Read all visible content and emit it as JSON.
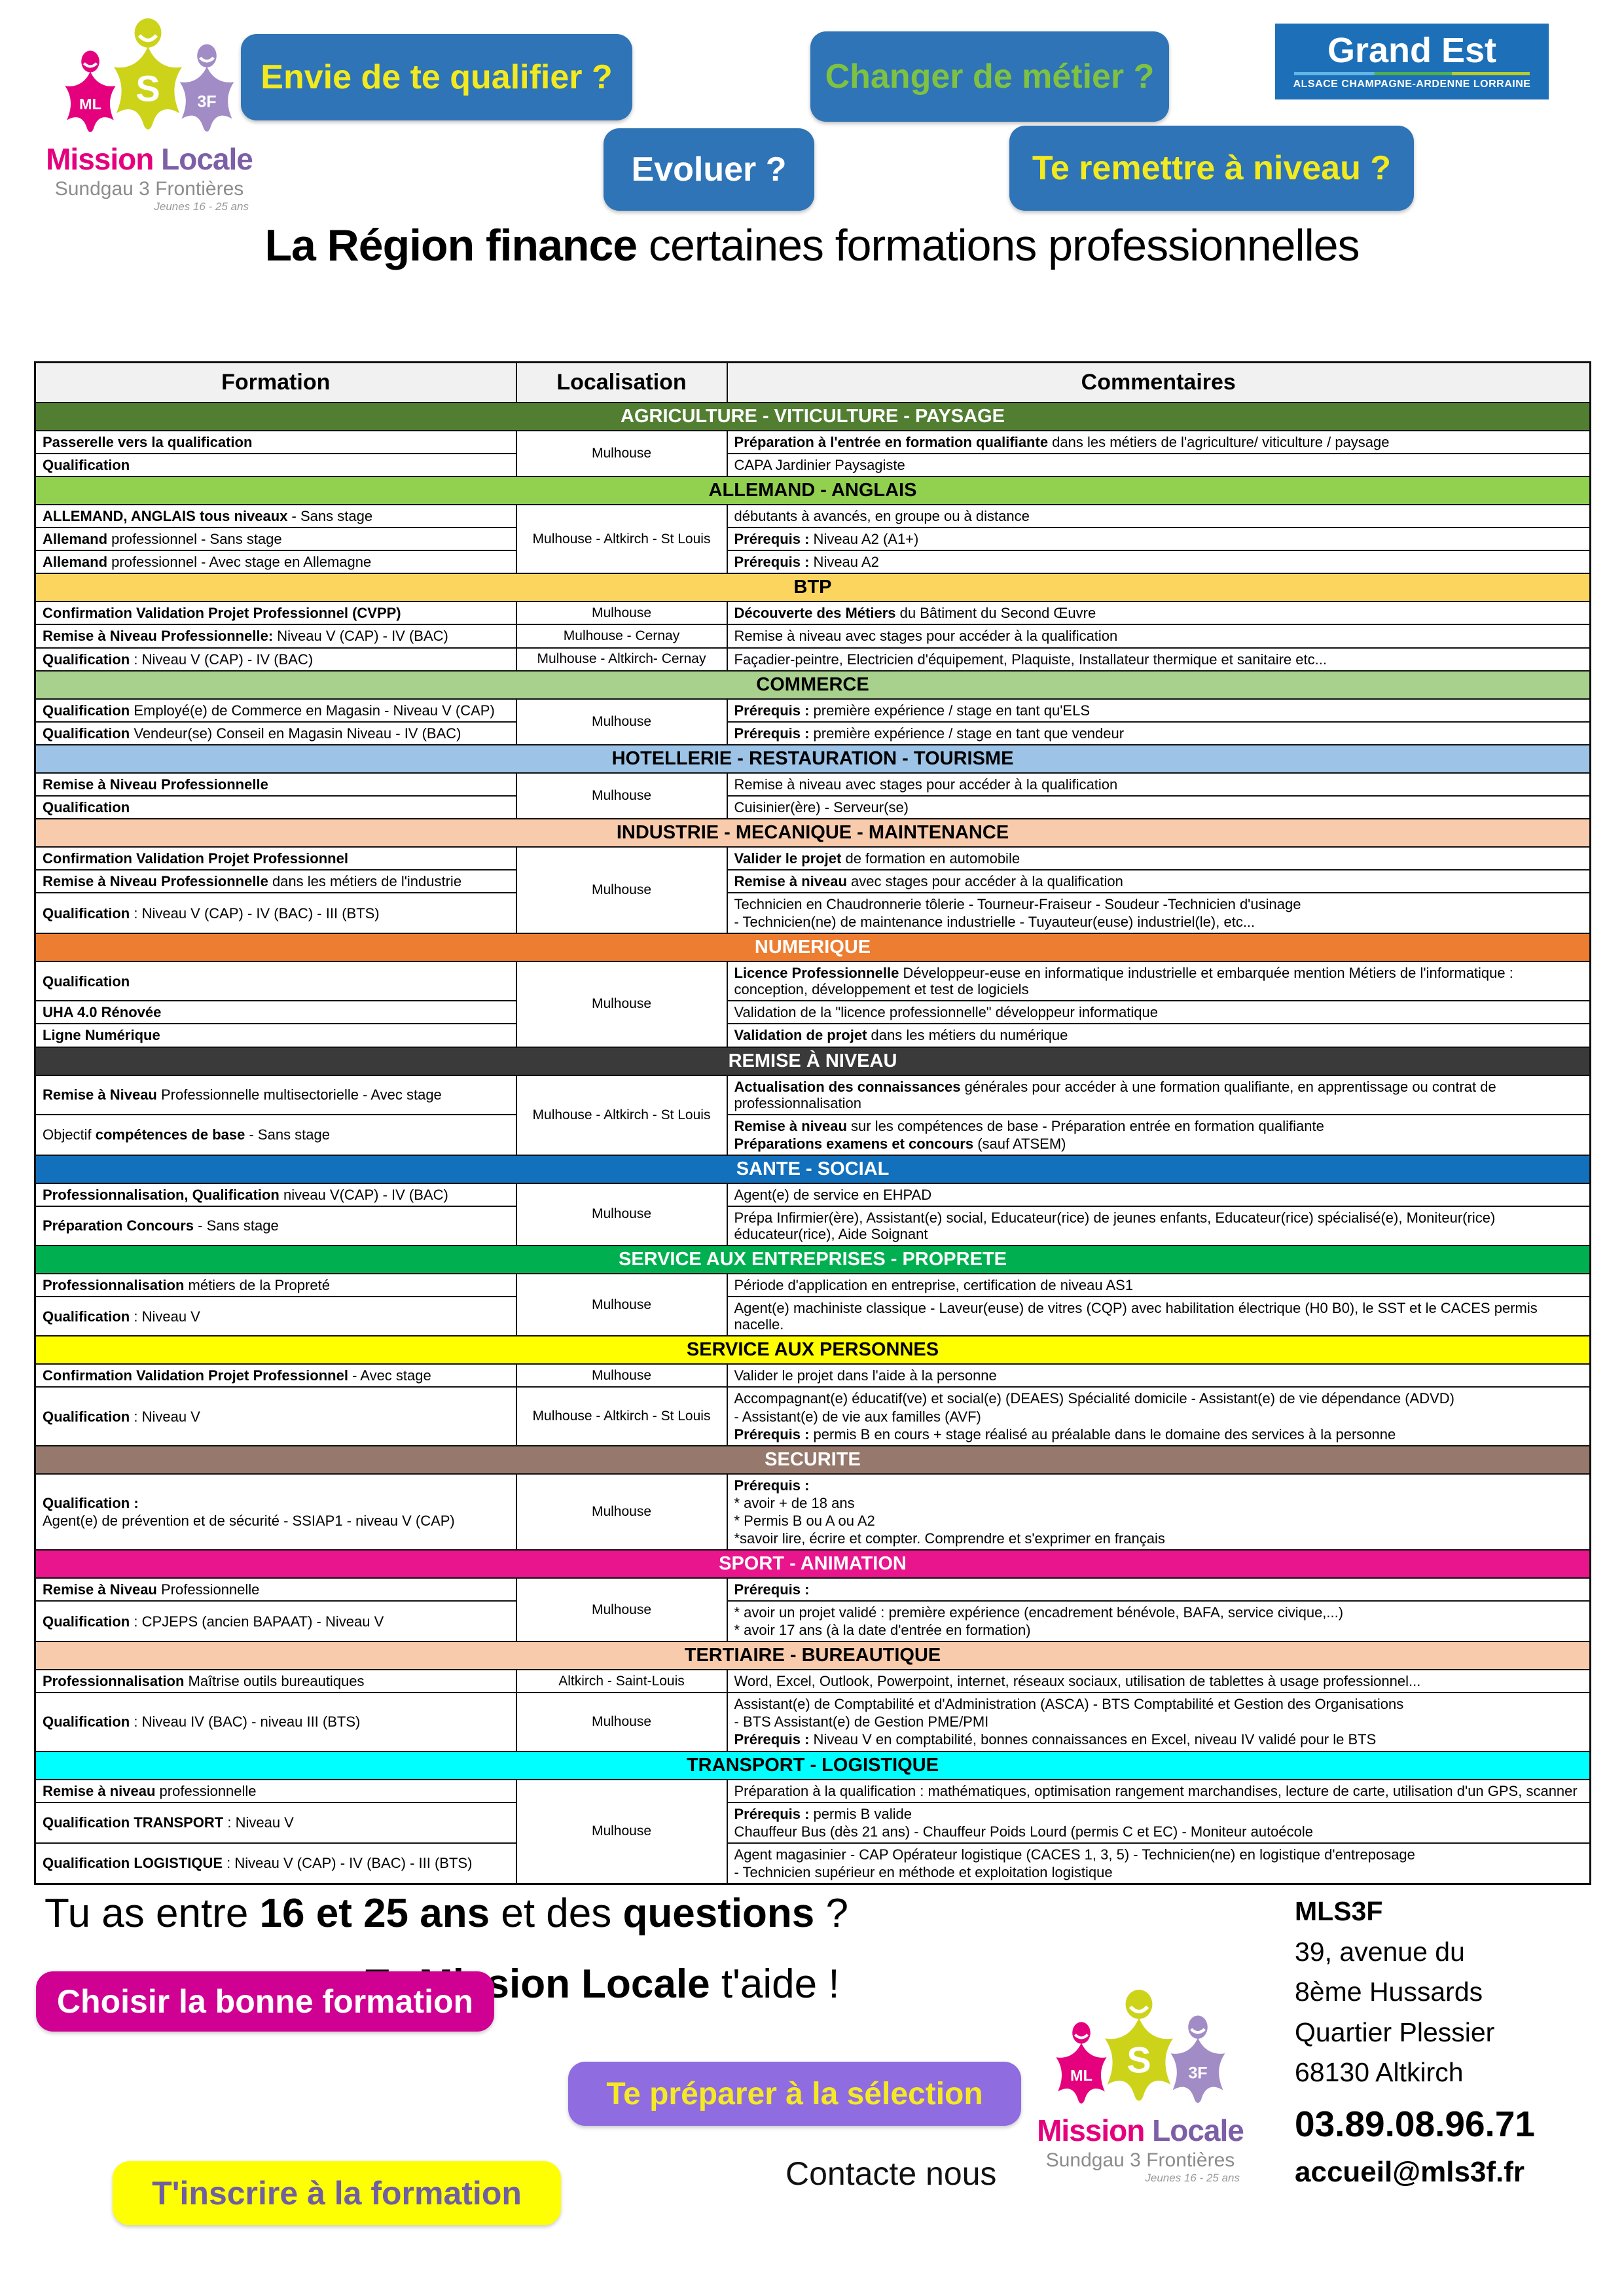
{
  "colors": {
    "button_blue": "#2e74b6",
    "yellow_text": "#f2ea1f",
    "green_text": "#7fc241",
    "grand_est_blue": "#1d70b8",
    "magenta": "#cf0092",
    "purple": "#8f6ce0",
    "yellow": "#ffff04",
    "logo_pink": "#e5007d",
    "logo_chartreuse": "#cdd319",
    "logo_purple": "#a18cc6"
  },
  "logo": {
    "badges": [
      {
        "letter": "ML",
        "color": "#e5007d"
      },
      {
        "letter": "S",
        "color": "#cdd319"
      },
      {
        "letter": "3F",
        "color": "#a18cc6"
      }
    ],
    "title_1": "Mission",
    "title_2": "Locale",
    "subtitle": "Sundgau 3  Frontières",
    "tagline": "Jeunes 16 - 25 ans"
  },
  "header": {
    "buttons": [
      {
        "label": "Envie de te qualifier ?"
      },
      {
        "label": "Changer de métier ?"
      },
      {
        "label": "Evoluer ?"
      },
      {
        "label": "Te remettre à niveau ?"
      }
    ],
    "grand_est": {
      "title": "Grand Est",
      "subtitle": "ALSACE CHAMPAGNE-ARDENNE LORRAINE"
    }
  },
  "title": {
    "bold": "La Région finance",
    "rest": " certaines formations professionnelles"
  },
  "table": {
    "columns": [
      "Formation",
      "Localisation",
      "Commentaires"
    ],
    "sections": [
      {
        "title": "AGRICULTURE  - VITICULTURE  - PAYSAGE",
        "bg": "#527e32",
        "fg": "#ffffff",
        "rows": [
          {
            "formation": [
              "**Passerelle vers la qualification**"
            ],
            "loc": "Mulhouse",
            "locSpan": 2,
            "comment": [
              "**Préparation à l'entrée en formation qualifiante** dans les métiers de l'agriculture/ viticulture / paysage"
            ]
          },
          {
            "formation": [
              "**Qualification**"
            ],
            "comment": [
              "CAPA Jardinier Paysagiste"
            ]
          }
        ]
      },
      {
        "title": "ALLEMAND - ANGLAIS",
        "bg": "#92d050",
        "fg": "#000000",
        "rows": [
          {
            "formation": [
              "**ALLEMAND, ANGLAIS tous niveaux** - Sans stage"
            ],
            "loc": "Mulhouse - Altkirch - St Louis",
            "locSpan": 3,
            "comment": [
              "débutants à avancés, en groupe ou à distance"
            ]
          },
          {
            "formation": [
              "**Allemand** professionnel - Sans stage"
            ],
            "comment": [
              "**Prérequis :** Niveau A2 (A1+)"
            ]
          },
          {
            "formation": [
              "**Allemand** professionnel - Avec stage en Allemagne"
            ],
            "comment": [
              "**Prérequis :** Niveau A2"
            ]
          }
        ]
      },
      {
        "title": "BTP",
        "bg": "#fcd55f",
        "fg": "#000000",
        "rows": [
          {
            "formation": [
              "**Confirmation Validation Projet Professionnel (CVPP)**"
            ],
            "loc": "Mulhouse",
            "comment": [
              "**Découverte des Métiers** du Bâtiment du Second Œuvre"
            ]
          },
          {
            "formation": [
              "**Remise à Niveau Professionnelle:** Niveau  V (CAP) - IV (BAC)"
            ],
            "loc": "Mulhouse - Cernay",
            "comment": [
              "Remise à niveau avec stages pour accéder à la qualification"
            ]
          },
          {
            "formation": [
              "**Qualification** : Niveau  V (CAP) - IV (BAC)"
            ],
            "loc": "Mulhouse - Altkirch- Cernay",
            "comment": [
              "Façadier-peintre, Electricien d'équipement, Plaquiste, Installateur thermique et sanitaire etc..."
            ]
          }
        ]
      },
      {
        "title": "COMMERCE",
        "bg": "#a9d18e",
        "fg": "#000000",
        "rows": [
          {
            "formation": [
              "**Qualification** Employé(e) de Commerce en Magasin - Niveau V (CAP)"
            ],
            "loc": "Mulhouse",
            "locSpan": 2,
            "comment": [
              "**Prérequis :** première expérience / stage en tant qu'ELS"
            ]
          },
          {
            "formation": [
              "**Qualification** Vendeur(se) Conseil en Magasin Niveau - IV (BAC)"
            ],
            "comment": [
              "**Prérequis :** première expérience / stage en tant que vendeur"
            ]
          }
        ]
      },
      {
        "title": "HOTELLERIE - RESTAURATION - TOURISME",
        "bg": "#9dc3e6",
        "fg": "#000000",
        "rows": [
          {
            "formation": [
              "**Remise à Niveau Professionnelle**"
            ],
            "loc": "Mulhouse",
            "locSpan": 2,
            "comment": [
              "Remise à niveau avec stages pour accéder à la qualification"
            ]
          },
          {
            "formation": [
              "**Qualification**"
            ],
            "comment": [
              "Cuisinier(ère)  - Serveur(se)"
            ]
          }
        ]
      },
      {
        "title": "INDUSTRIE - MECANIQUE - MAINTENANCE",
        "bg": "#f8cbad",
        "fg": "#000000",
        "rows": [
          {
            "formation": [
              "**Confirmation Validation Projet Professionnel**"
            ],
            "loc": "Mulhouse",
            "locSpan": 3,
            "comment": [
              "**Valider le projet** de formation en automobile"
            ]
          },
          {
            "formation": [
              "**Remise à Niveau Professionnelle** dans les métiers de l'industrie"
            ],
            "comment": [
              "**Remise à niveau** avec stages pour accéder à la qualification"
            ]
          },
          {
            "formation": [
              "**Qualification** : Niveau  V (CAP) - IV (BAC) - III (BTS)"
            ],
            "comment": [
              "Technicien en Chaudronnerie tôlerie -  Tourneur-Fraiseur - Soudeur -Technicien d'usinage",
              "- Technicien(ne) de maintenance industrielle - Tuyauteur(euse) industriel(le), etc..."
            ]
          }
        ]
      },
      {
        "title": "NUMERIQUE",
        "bg": "#ed7d31",
        "fg": "#ffffff",
        "rows": [
          {
            "formation": [
              "**Qualification**"
            ],
            "loc": "Mulhouse",
            "locSpan": 3,
            "comment": [
              "**Licence Professionnelle** Développeur-euse en informatique industrielle et embarquée mention Métiers de l'informatique : conception, développement et test de logiciels"
            ]
          },
          {
            "formation": [
              "**UHA 4.0 Rénovée**"
            ],
            "comment": [
              "Validation de la \"licence professionnelle\" développeur informatique"
            ]
          },
          {
            "formation": [
              "**Ligne Numérique**"
            ],
            "comment": [
              "**Validation de projet** dans les métiers du numérique"
            ]
          }
        ]
      },
      {
        "title": "REMISE À NIVEAU",
        "bg": "#3a3a3a",
        "fg": "#ffffff",
        "rows": [
          {
            "formation": [
              "**Remise à Niveau** Professionnelle multisectorielle - Avec stage"
            ],
            "loc": "Mulhouse - Altkirch - St Louis",
            "locSpan": 2,
            "comment": [
              "**Actualisation des connaissances** générales pour accéder à une formation qualifiante, en apprentissage ou contrat de professionnalisation"
            ]
          },
          {
            "formation": [
              "Objectif **compétences de base** - Sans stage"
            ],
            "comment": [
              "**Remise à niveau** sur les compétences de base - Préparation entrée en formation qualifiante",
              "**Préparations examens et concours** (sauf ATSEM)"
            ]
          }
        ]
      },
      {
        "title": "SANTE - SOCIAL",
        "bg": "#1270bd",
        "fg": "#ffffff",
        "rows": [
          {
            "formation": [
              "**Professionnalisation, Qualification** niveau V(CAP) - IV (BAC)"
            ],
            "loc": "Mulhouse",
            "locSpan": 2,
            "comment": [
              "Agent(e) de service en EHPAD"
            ]
          },
          {
            "formation": [
              "**Préparation Concours** - Sans stage"
            ],
            "comment": [
              "Prépa Infirmier(ère), Assistant(e) social, Educateur(rice) de jeunes enfants, Educateur(rice) spécialisé(e), Moniteur(rice) éducateur(rice), Aide Soignant"
            ]
          }
        ]
      },
      {
        "title": "SERVICE AUX ENTREPRISES - PROPRETE",
        "bg": "#00b050",
        "fg": "#ffffff",
        "rows": [
          {
            "formation": [
              "**Professionnalisation** métiers de la Propreté"
            ],
            "loc": "Mulhouse",
            "locSpan": 2,
            "comment": [
              "Période d'application en entreprise, certification de niveau AS1"
            ]
          },
          {
            "formation": [
              "**Qualification** : Niveau V"
            ],
            "comment": [
              "Agent(e) machiniste classique -  Laveur(euse) de vitres (CQP) avec habilitation électrique (H0 B0), le SST et le CACES permis nacelle."
            ]
          }
        ]
      },
      {
        "title": "SERVICE AUX PERSONNES",
        "bg": "#ffff00",
        "fg": "#000000",
        "rows": [
          {
            "formation": [
              "**Confirmation Validation Projet Professionnel** - Avec stage"
            ],
            "loc": "Mulhouse",
            "comment": [
              "Valider le projet dans l'aide à la personne"
            ]
          },
          {
            "formation": [
              "**Qualification** : Niveau V"
            ],
            "loc": "Mulhouse - Altkirch - St Louis",
            "comment": [
              "Accompagnant(e) éducatif(ve) et social(e) (DEAES) Spécialité domicile - Assistant(e) de vie dépendance (ADVD)",
              "- Assistant(e) de vie aux familles (AVF)",
              "**Prérequis :** permis B en cours +  stage réalisé au préalable dans le domaine des services à la personne"
            ]
          }
        ]
      },
      {
        "title": "SECURITE",
        "bg": "#96786c",
        "fg": "#ffffff",
        "rows": [
          {
            "formation": [
              "**Qualification :**",
              " Agent(e) de prévention et de sécurité - SSIAP1 - niveau V (CAP)"
            ],
            "loc": "Mulhouse",
            "comment": [
              "**Prérequis :**",
              "* avoir + de 18 ans",
              "* Permis B ou A ou A2",
              "*savoir lire, écrire et compter. Comprendre et s'exprimer en français"
            ]
          }
        ]
      },
      {
        "title": "SPORT - ANIMATION",
        "bg": "#e9158d",
        "fg": "#ffffff",
        "rows": [
          {
            "formation": [
              "**Remise à Niveau** Professionnelle"
            ],
            "loc": "Mulhouse",
            "locSpan": 2,
            "comment": [
              "**Prérequis :**"
            ]
          },
          {
            "formation": [
              "**Qualification** : CPJEPS (ancien BAPAAT)  - Niveau V"
            ],
            "comment": [
              "* avoir un projet validé : première expérience (encadrement bénévole, BAFA, service civique,...)",
              "* avoir 17 ans (à la date d'entrée en formation)"
            ]
          }
        ]
      },
      {
        "title": "TERTIAIRE -  BUREAUTIQUE",
        "bg": "#f8cbad",
        "fg": "#000000",
        "rows": [
          {
            "formation": [
              "**Professionnalisation** Maîtrise outils bureautiques"
            ],
            "loc": "Altkirch - Saint-Louis",
            "comment": [
              "Word, Excel, Outlook, Powerpoint, internet, réseaux sociaux, utilisation de tablettes à usage professionnel..."
            ]
          },
          {
            "formation": [
              "**Qualification** : Niveau IV (BAC) - niveau III (BTS)"
            ],
            "loc": "Mulhouse",
            "comment": [
              "Assistant(e) de Comptabilité et d'Administration (ASCA) - BTS Comptabilité et Gestion des Organisations",
              "- BTS Assistant(e) de Gestion PME/PMI",
              "**Prérequis :** Niveau V en comptabilité, bonnes connaissances en Excel, niveau IV validé pour le BTS"
            ]
          }
        ]
      },
      {
        "title": "TRANSPORT - LOGISTIQUE",
        "bg": "#00ffff",
        "fg": "#000000",
        "rows": [
          {
            "formation": [
              "**Remise à niveau** professionnelle"
            ],
            "loc": "Mulhouse",
            "locSpan": 3,
            "comment": [
              "Préparation à la qualification : mathématiques, optimisation rangement marchandises, lecture de carte, utilisation d'un GPS, scanner"
            ]
          },
          {
            "formation": [
              "**Qualification TRANSPORT** : Niveau V"
            ],
            "comment": [
              "**Prérequis :** permis B valide",
              "Chauffeur Bus (dès 21 ans) - Chauffeur Poids Lourd (permis C et EC)  - Moniteur autoécole"
            ]
          },
          {
            "formation": [
              "**Qualification LOGISTIQUE** :  Niveau V (CAP) - IV (BAC) - III (BTS)"
            ],
            "comment": [
              "Agent magasinier -  CAP Opérateur logistique (CACES 1, 3, 5) - Technicien(ne) en logistique d'entreposage",
              "- Technicien supérieur en méthode et exploitation logistique"
            ]
          }
        ]
      }
    ]
  },
  "footer": {
    "question_line": "Tu as entre **16 et 25 ans** et des **questions** ?",
    "help_line": "Ta **Mission Locale** t'aide !",
    "buttons": [
      {
        "label": "Choisir la bonne formation"
      },
      {
        "label": "Te préparer à la sélection"
      },
      {
        "label": "T'inscrire à la formation"
      }
    ],
    "contact_cta": "Contacte nous",
    "contact": {
      "name": "MLS3F",
      "address1": "39, avenue du",
      "address2": "8ème Hussards",
      "address3": "Quartier Plessier",
      "address4": "68130 Altkirch",
      "phone": "03.89.08.96.71",
      "email": "accueil@mls3f.fr"
    }
  }
}
